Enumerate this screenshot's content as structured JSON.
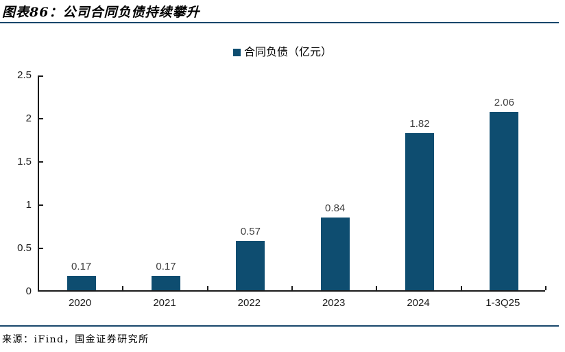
{
  "header": {
    "title": "图表86：公司合同负债持续攀升"
  },
  "legend": {
    "label": "合同负债（亿元）"
  },
  "chart_data": {
    "type": "bar",
    "title": "图表86：公司合同负债持续攀升",
    "legend": [
      "合同负债（亿元）"
    ],
    "legend_position": "top-center",
    "categories": [
      "2020",
      "2021",
      "2022",
      "2023",
      "2024",
      "1-3Q25"
    ],
    "values": [
      0.17,
      0.17,
      0.57,
      0.84,
      1.82,
      2.06
    ],
    "data_labels": [
      "0.17",
      "0.17",
      "0.57",
      "0.84",
      "1.82",
      "2.06"
    ],
    "ylabel": "",
    "xlabel": "",
    "ylim": [
      0,
      2.5
    ],
    "yticks": [
      0,
      0.5,
      1,
      1.5,
      2,
      2.5
    ],
    "ytick_labels": [
      "0",
      "0.5",
      "1",
      "1.5",
      "2",
      "2.5"
    ],
    "grid": false,
    "bar_color": "#0E4D70"
  },
  "footer": {
    "source": "来源：iFind，国金证券研究所"
  },
  "colors": {
    "bar": "#0E4D70",
    "rule": "#17466B",
    "axis": "#1A1A1A",
    "data_label": "#404040"
  }
}
